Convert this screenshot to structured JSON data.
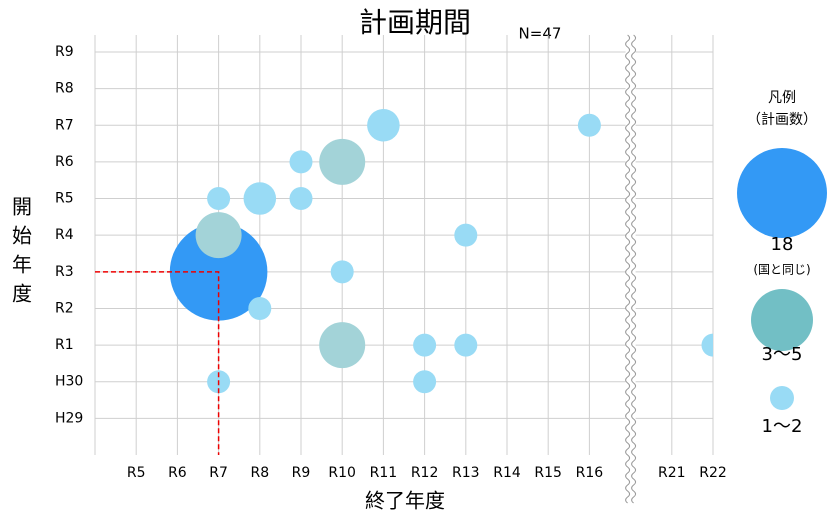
{
  "chart_data": {
    "type": "bubble",
    "title": "計画期間",
    "subtitle": "N=47",
    "x_label": "終了年度",
    "y_label": "開始年度",
    "legend_title": "凡例",
    "legend_subtitle": "（計画数）",
    "x_categories": [
      "R5",
      "R6",
      "R7",
      "R8",
      "R9",
      "R10",
      "R11",
      "R12",
      "R13",
      "R14",
      "R15",
      "R16",
      null,
      "R21",
      "R22"
    ],
    "y_categories": [
      "H29",
      "H30",
      "R1",
      "R2",
      "R3",
      "R4",
      "R5",
      "R6",
      "R7",
      "R8",
      "R9"
    ],
    "grid": true,
    "series": [
      {
        "name": "18",
        "note": "(国と同じ)",
        "color": "#3399f5",
        "x": [
          "R7"
        ],
        "y": [
          "R3"
        ],
        "sizes": [
          18
        ]
      },
      {
        "name": "3～5",
        "color": "#a3d3d8",
        "x": [
          "R7",
          "R10",
          "R10"
        ],
        "y": [
          "R4",
          "R6",
          "R1"
        ],
        "sizes": [
          4,
          4,
          4
        ]
      },
      {
        "name": "1～2",
        "color": "#99dbf5",
        "x": [
          "R11",
          "R16",
          "R9",
          "R7",
          "R8",
          "R9",
          "R13",
          "R10",
          "R8",
          "R12",
          "R13",
          "R22",
          "R7",
          "R12"
        ],
        "y": [
          "R7",
          "R7",
          "R6",
          "R5",
          "R5",
          "R5",
          "R4",
          "R3",
          "R2",
          "R1",
          "R1",
          "R1",
          "H30",
          "H30"
        ],
        "sizes": [
          2,
          1,
          1,
          1,
          2,
          1,
          1,
          1,
          1,
          1,
          1,
          1,
          1,
          1
        ]
      }
    ]
  }
}
